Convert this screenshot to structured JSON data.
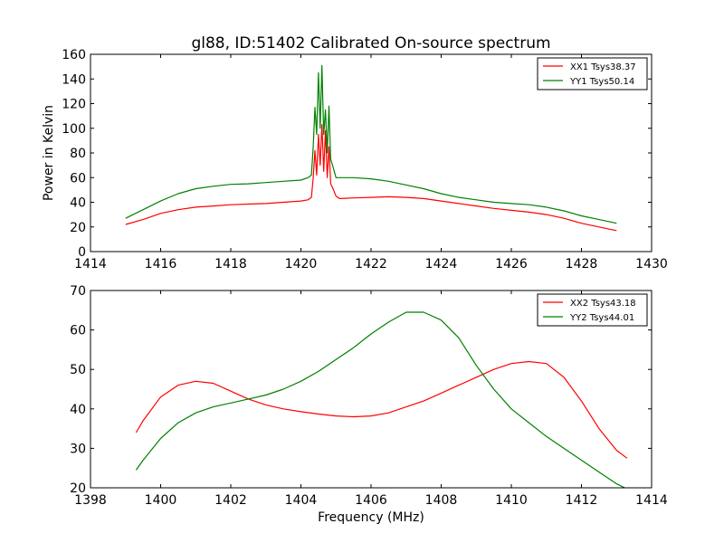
{
  "chart_data": [
    {
      "type": "line",
      "title": "gl88, ID:51402 Calibrated On-source spectrum",
      "xlabel": "",
      "ylabel": "Power in Kelvin",
      "xlim": [
        1414,
        1430
      ],
      "ylim": [
        0,
        160
      ],
      "xticks": [
        "1414",
        "1416",
        "1418",
        "1420",
        "1422",
        "1424",
        "1426",
        "1428",
        "1430"
      ],
      "yticks": [
        "0",
        "20",
        "40",
        "60",
        "80",
        "100",
        "120",
        "140",
        "160"
      ],
      "legend": "top-right",
      "grid": false,
      "series": [
        {
          "name": "XX1 Tsys38.37",
          "color": "#ff0000",
          "x": [
            1415.0,
            1415.5,
            1416.0,
            1416.5,
            1417.0,
            1417.5,
            1418.0,
            1418.5,
            1419.0,
            1419.5,
            1420.0,
            1420.2,
            1420.3,
            1420.35,
            1420.4,
            1420.45,
            1420.5,
            1420.55,
            1420.6,
            1420.65,
            1420.7,
            1420.75,
            1420.8,
            1420.85,
            1420.9,
            1421.0,
            1421.1,
            1421.5,
            1422.0,
            1422.5,
            1423.0,
            1423.5,
            1424.0,
            1424.5,
            1425.0,
            1425.5,
            1426.0,
            1426.5,
            1427.0,
            1427.5,
            1428.0,
            1428.5,
            1429.0
          ],
          "y": [
            22,
            26,
            31,
            34,
            36,
            37,
            38,
            38.5,
            39,
            40,
            41,
            42,
            44,
            60,
            82,
            62,
            95,
            70,
            103,
            65,
            98,
            60,
            85,
            55,
            52,
            45,
            43,
            43.5,
            44,
            44.5,
            44,
            43,
            41,
            39,
            37,
            35,
            33.5,
            32,
            30,
            27,
            23,
            20,
            17
          ]
        },
        {
          "name": "YY1 Tsys50.14",
          "color": "#008000",
          "x": [
            1415.0,
            1415.5,
            1416.0,
            1416.5,
            1417.0,
            1417.5,
            1418.0,
            1418.5,
            1419.0,
            1419.5,
            1420.0,
            1420.2,
            1420.3,
            1420.35,
            1420.4,
            1420.45,
            1420.5,
            1420.55,
            1420.6,
            1420.65,
            1420.7,
            1420.75,
            1420.8,
            1420.85,
            1420.9,
            1421.0,
            1421.1,
            1421.5,
            1422.0,
            1422.5,
            1423.0,
            1423.5,
            1424.0,
            1424.5,
            1425.0,
            1425.5,
            1426.0,
            1426.5,
            1427.0,
            1427.5,
            1428.0,
            1428.5,
            1429.0
          ],
          "y": [
            27,
            34,
            41,
            47,
            51,
            53,
            54.5,
            55,
            56,
            57,
            58,
            60,
            62,
            85,
            117,
            95,
            145,
            100,
            151,
            95,
            115,
            80,
            118,
            75,
            70,
            60,
            60,
            60,
            59,
            57,
            54,
            51,
            47,
            44,
            42,
            40,
            39,
            38,
            36,
            33,
            29,
            26,
            23
          ]
        }
      ]
    },
    {
      "type": "line",
      "title": "",
      "xlabel": "Frequency (MHz)",
      "ylabel": "",
      "xlim": [
        1398,
        1414
      ],
      "ylim": [
        20,
        70
      ],
      "xticks": [
        "1398",
        "1400",
        "1402",
        "1404",
        "1406",
        "1408",
        "1410",
        "1412",
        "1414"
      ],
      "yticks": [
        "20",
        "30",
        "40",
        "50",
        "60",
        "70"
      ],
      "legend": "top-right",
      "grid": false,
      "series": [
        {
          "name": "XX2 Tsys43.18",
          "color": "#ff0000",
          "x": [
            1399.3,
            1399.5,
            1400.0,
            1400.5,
            1401.0,
            1401.5,
            1402.0,
            1402.5,
            1403.0,
            1403.5,
            1404.0,
            1404.5,
            1405.0,
            1405.5,
            1406.0,
            1406.5,
            1407.0,
            1407.5,
            1408.0,
            1408.5,
            1409.0,
            1409.5,
            1410.0,
            1410.5,
            1411.0,
            1411.5,
            1412.0,
            1412.5,
            1413.0,
            1413.3
          ],
          "y": [
            34,
            37,
            43,
            46,
            47,
            46.5,
            44.5,
            42.5,
            41,
            40,
            39.3,
            38.7,
            38.2,
            38,
            38.2,
            39,
            40.5,
            42,
            44,
            46,
            48,
            50,
            51.5,
            52,
            51.5,
            48,
            42,
            35,
            29.5,
            27.5
          ]
        },
        {
          "name": "YY2 Tsys44.01",
          "color": "#008000",
          "x": [
            1399.3,
            1399.5,
            1400.0,
            1400.5,
            1401.0,
            1401.5,
            1402.0,
            1402.5,
            1403.0,
            1403.5,
            1404.0,
            1404.5,
            1405.0,
            1405.5,
            1406.0,
            1406.5,
            1407.0,
            1407.5,
            1408.0,
            1408.5,
            1409.0,
            1409.5,
            1410.0,
            1410.5,
            1411.0,
            1411.5,
            1412.0,
            1412.5,
            1413.0,
            1413.3
          ],
          "y": [
            24.5,
            27,
            32.5,
            36.5,
            39,
            40.5,
            41.5,
            42.5,
            43.5,
            45,
            47,
            49.5,
            52.5,
            55.5,
            59,
            62,
            64.5,
            64.5,
            62.5,
            58,
            51,
            45,
            40,
            36.5,
            33,
            30,
            27,
            24,
            21,
            19.7
          ]
        }
      ]
    }
  ]
}
